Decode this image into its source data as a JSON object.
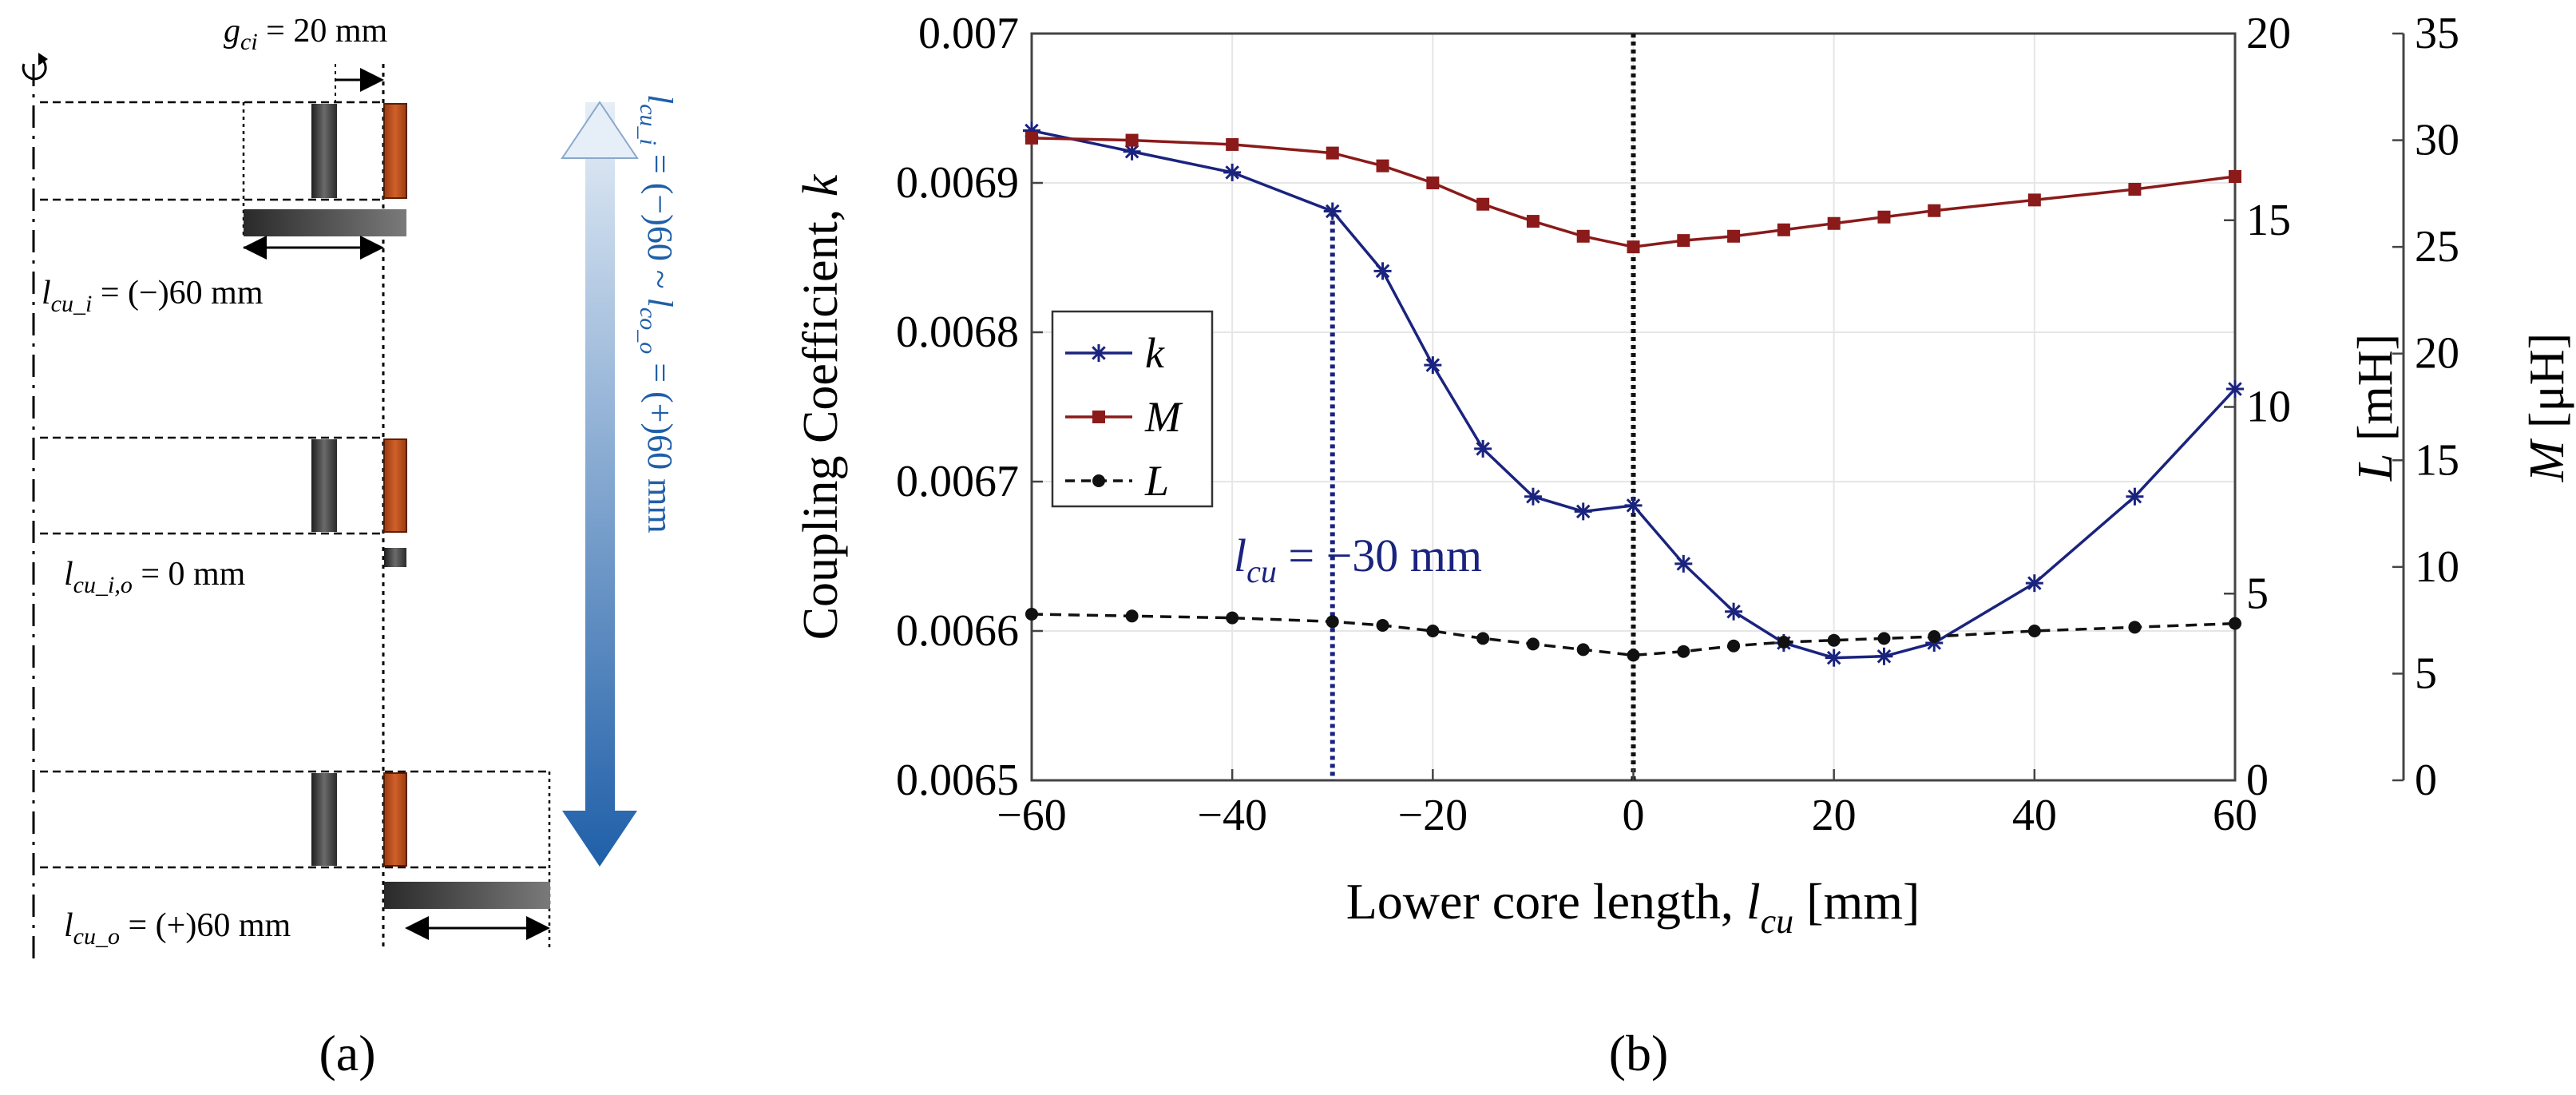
{
  "panel_a": {
    "label": "(a)",
    "gap": {
      "sym": "g",
      "sub": "ci",
      "value": " = 20 mm"
    },
    "case_top": {
      "sym": "l",
      "sub": "cu_i",
      "value": " = (−)60 mm"
    },
    "case_mid": {
      "sym": "l",
      "sub": "cu_i,o",
      "value": " = 0 mm"
    },
    "case_bot": {
      "sym": "l",
      "sub": "cu_o",
      "value": " = (+)60 mm"
    },
    "range": {
      "sym1": "l",
      "sub1": "cu_i",
      "mid": " = (−)60 ~ ",
      "sym2": "l",
      "sub2": "co_o",
      "end": " = (+)60 mm"
    },
    "colors": {
      "inner_core": "#3a3a3a",
      "outer_coil": "#c0501a",
      "range_arrow": "#1f5fa8"
    }
  },
  "panel_b": {
    "label": "(b)"
  },
  "chart_data": {
    "type": "line",
    "xlabel": {
      "text": "Lower core length, ",
      "sym": "l",
      "sub": "cu",
      "unit": " [mm]"
    },
    "xlim": [
      -60,
      60
    ],
    "xticks": [
      -60,
      -40,
      -20,
      0,
      20,
      40,
      60
    ],
    "xtick_labels": [
      "−60",
      "−40",
      "−20",
      "0",
      "20",
      "40",
      "60"
    ],
    "left_axis": {
      "label": "Coupling Coefficient, ",
      "label_sym": "k",
      "ylim": [
        0.0065,
        0.007
      ],
      "ticks": [
        0.0065,
        0.0066,
        0.0067,
        0.0068,
        0.0069,
        0.007
      ],
      "tick_labels": [
        "0.0065",
        "0.0066",
        "0.0067",
        "0.0068",
        "0.0069",
        "0.007"
      ]
    },
    "right_axis_L": {
      "label_sym": "L",
      "label_unit": " [mH]",
      "ylim": [
        0,
        20
      ],
      "ticks": [
        0,
        5,
        10,
        15,
        20
      ],
      "tick_labels": [
        "0",
        "5",
        "10",
        "15",
        "20"
      ]
    },
    "right_axis_M": {
      "label_sym": "M",
      "label_unit": " [μH]",
      "ylim": [
        0,
        35
      ],
      "ticks": [
        0,
        5,
        10,
        15,
        20,
        25,
        30,
        35
      ],
      "tick_labels": [
        "0",
        "5",
        "10",
        "15",
        "20",
        "25",
        "30",
        "35"
      ]
    },
    "series": [
      {
        "name": "k",
        "axis": "left",
        "color": "#1a237e",
        "marker": "asterisk",
        "dash": "solid",
        "x": [
          -60,
          -50,
          -40,
          -30,
          -25,
          -20,
          -15,
          -10,
          -5,
          0,
          5,
          10,
          15,
          20,
          25,
          30,
          40,
          50,
          60
        ],
        "values": [
          0.006935,
          0.006921,
          0.006907,
          0.006881,
          0.006841,
          0.006778,
          0.006722,
          0.00669,
          0.00668,
          0.006684,
          0.006645,
          0.006613,
          0.006592,
          0.006582,
          0.006583,
          0.006592,
          0.006632,
          0.00669,
          0.006762
        ]
      },
      {
        "name": "M",
        "axis": "M",
        "color": "#8b1a1a",
        "marker": "square",
        "dash": "solid",
        "x": [
          -60,
          -50,
          -40,
          -30,
          -25,
          -20,
          -15,
          -10,
          -5,
          0,
          5,
          10,
          15,
          20,
          25,
          30,
          40,
          50,
          60
        ],
        "values": [
          30.1,
          30.0,
          29.8,
          29.4,
          28.8,
          28.0,
          27.0,
          26.2,
          25.5,
          25.0,
          25.3,
          25.5,
          25.8,
          26.1,
          26.4,
          26.7,
          27.2,
          27.7,
          28.3
        ]
      },
      {
        "name": "L",
        "axis": "L",
        "color": "#111111",
        "marker": "circle",
        "dash": "dashed",
        "x": [
          -60,
          -50,
          -40,
          -30,
          -25,
          -20,
          -15,
          -10,
          -5,
          0,
          5,
          10,
          15,
          20,
          25,
          30,
          40,
          50,
          60
        ],
        "values": [
          4.45,
          4.4,
          4.35,
          4.25,
          4.15,
          4.0,
          3.8,
          3.65,
          3.5,
          3.35,
          3.45,
          3.6,
          3.7,
          3.75,
          3.8,
          3.85,
          4.0,
          4.1,
          4.2
        ]
      }
    ],
    "vlines": [
      {
        "x": -30,
        "color": "#1a237e"
      },
      {
        "x": 0,
        "color": "#111111"
      }
    ],
    "annotation": {
      "sym": "l",
      "sub": "cu",
      "text": " = −30 mm",
      "color": "#1a237e"
    },
    "legend": {
      "position": "middle-left",
      "entries": [
        "k",
        "M",
        "L"
      ]
    },
    "grid": true
  }
}
